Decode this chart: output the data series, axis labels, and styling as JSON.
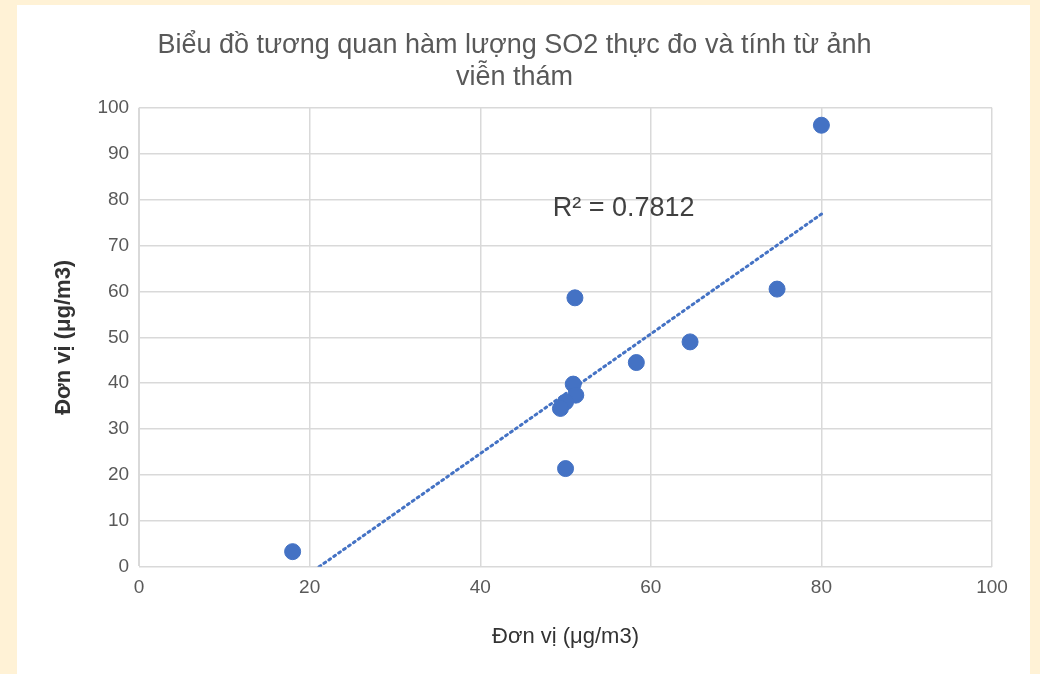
{
  "chart_data": {
    "type": "scatter",
    "title": "Biểu đồ tương quan hàm lượng SO2 thực đo và tính từ ảnh viễn thám",
    "xlabel": "Đơn vị (μg/m3)",
    "ylabel": "Đơn vị (μg/m3)",
    "xlim": [
      0,
      100
    ],
    "xticks": [
      0,
      20,
      40,
      60,
      80,
      100
    ],
    "ylim": [
      0,
      100
    ],
    "yticks": [
      0,
      10,
      20,
      30,
      40,
      50,
      60,
      70,
      80,
      90,
      100
    ],
    "grid": true,
    "series": [
      {
        "color": "#4472c4",
        "marker": "circle",
        "x": [
          18.0,
          80.0,
          74.8,
          64.6,
          58.3,
          51.1,
          50.9,
          51.2,
          50.0,
          49.4,
          50.0
        ],
        "values": [
          3.3,
          96.2,
          60.5,
          49.0,
          44.5,
          58.6,
          39.8,
          37.4,
          35.9,
          34.5,
          21.4
        ]
      },
      {
        "type": "line",
        "color": "#4472c4",
        "marker": "none",
        "line_style": "dotted",
        "x": [
          21.1,
          80.2
        ],
        "values": [
          0,
          77.1
        ]
      }
    ],
    "annotations": [
      "R² = 0.7812"
    ]
  }
}
